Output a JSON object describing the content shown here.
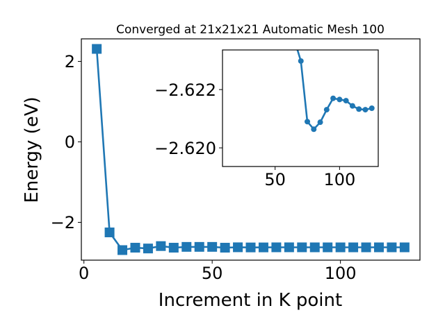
{
  "chart_data": [
    {
      "type": "line",
      "title": "Converged at 21x21x21 Automatic Mesh 100",
      "xlabel": "Increment in K point",
      "ylabel": "Energy (eV)",
      "xlim": [
        -1,
        131
      ],
      "ylim": [
        -2.94,
        2.56
      ],
      "xticks": [
        0,
        50,
        100
      ],
      "xtick_labels": [
        "0",
        "50",
        "100"
      ],
      "yticks": [
        -2,
        0,
        2
      ],
      "ytick_labels": [
        "−2",
        "0",
        "2"
      ],
      "grid": false,
      "marker": "square",
      "color": "#1f77b4",
      "x": [
        5,
        10,
        15,
        20,
        25,
        30,
        35,
        40,
        45,
        50,
        55,
        60,
        65,
        70,
        75,
        80,
        85,
        90,
        95,
        100,
        105,
        110,
        115,
        120,
        125
      ],
      "y": [
        2.31,
        -2.25,
        -2.69,
        -2.63,
        -2.65,
        -2.59,
        -2.63,
        -2.61,
        -2.61,
        -2.61,
        -2.63,
        -2.62,
        -2.6237,
        -2.623,
        -2.6209,
        -2.6206,
        -2.6209,
        -2.6213,
        -2.6217,
        -2.6217,
        -2.6216,
        -2.6214,
        -2.6213,
        -2.6213,
        -2.6214
      ]
    },
    {
      "type": "line",
      "role": "inset",
      "xlim": [
        9.2,
        130
      ],
      "ylim": [
        -2.61936,
        -2.62336
      ],
      "y_inverted": true,
      "xticks": [
        50,
        100
      ],
      "xtick_labels": [
        "50",
        "100"
      ],
      "yticks": [
        -2.622,
        -2.62
      ],
      "ytick_labels": [
        "−2.622",
        "−2.620"
      ],
      "grid": false,
      "marker": "circle",
      "color": "#1f77b4",
      "x": [
        65,
        70,
        75,
        80,
        85,
        90,
        95,
        100,
        105,
        110,
        115,
        120,
        125
      ],
      "y": [
        -2.6237,
        -2.62298,
        -2.6209,
        -2.62064,
        -2.62088,
        -2.62131,
        -2.6217,
        -2.62166,
        -2.62162,
        -2.62144,
        -2.62133,
        -2.62131,
        -2.62136
      ]
    }
  ]
}
